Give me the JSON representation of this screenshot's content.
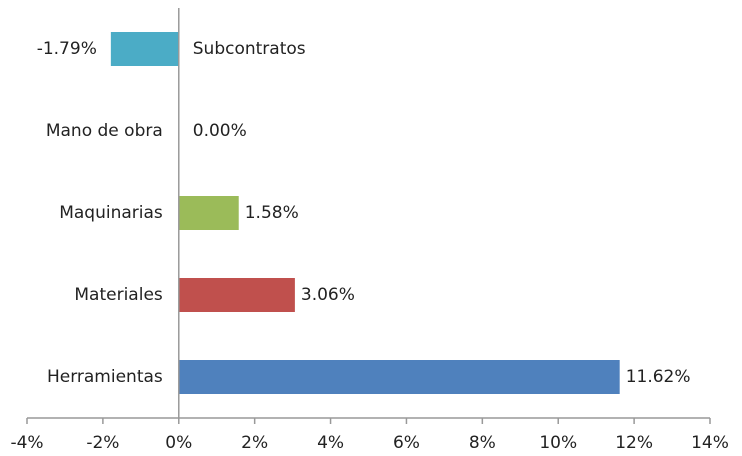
{
  "chart_data": {
    "type": "bar",
    "orientation": "horizontal",
    "categories": [
      "Subcontratos",
      "Mano de obra",
      "Maquinarias",
      "Materiales",
      "Herramientas"
    ],
    "values": [
      -1.79,
      0.0,
      1.58,
      3.06,
      11.62
    ],
    "value_labels": [
      "-1.79%",
      "0.00%",
      "1.58%",
      "3.06%",
      "11.62%"
    ],
    "colors": [
      "#4bacc6",
      null,
      "#9bbb59",
      "#c0504d",
      "#4f81bd"
    ],
    "xlim": [
      -4,
      14
    ],
    "xticks": [
      {
        "value": -4,
        "label": "-4%"
      },
      {
        "value": -2,
        "label": "-2%"
      },
      {
        "value": 0,
        "label": "0%"
      },
      {
        "value": 2,
        "label": "2%"
      },
      {
        "value": 4,
        "label": "4%"
      },
      {
        "value": 6,
        "label": "6%"
      },
      {
        "value": 8,
        "label": "8%"
      },
      {
        "value": 10,
        "label": "10%"
      },
      {
        "value": 12,
        "label": "12%"
      },
      {
        "value": 14,
        "label": "14%"
      }
    ],
    "grid": false
  }
}
